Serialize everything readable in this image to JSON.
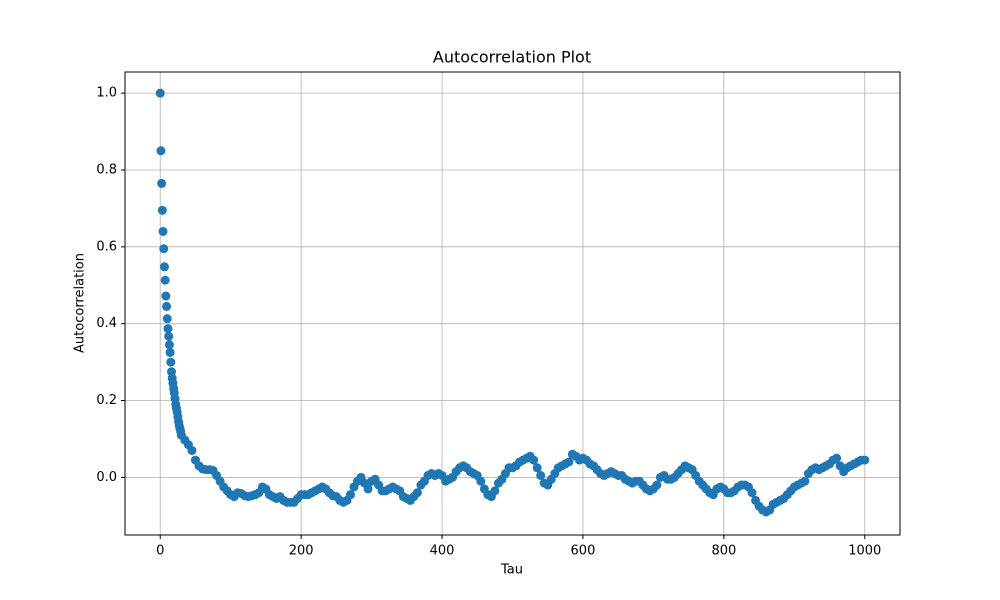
{
  "chart_data": {
    "type": "scatter",
    "title": "Autocorrelation Plot",
    "x_label": "Tau",
    "y_label": "Autocorrelation",
    "color": "#1f77b4",
    "grid": true,
    "xlim": [
      -50,
      1050
    ],
    "ylim": [
      -0.15,
      1.055
    ],
    "xticks": [
      0,
      200,
      400,
      600,
      800,
      1000
    ],
    "yticks": [
      {
        "value": 0.0,
        "label": "0.0"
      },
      0.2,
      0.4,
      0.6,
      0.8,
      {
        "value": 1.0,
        "label": "1.0"
      }
    ],
    "x": [
      0,
      1,
      2,
      3,
      4,
      5,
      6,
      7,
      8,
      9,
      10,
      11,
      12,
      13,
      14,
      15,
      16,
      17,
      18,
      19,
      20,
      21,
      22,
      23,
      24,
      25,
      26,
      27,
      28,
      29,
      30,
      35,
      40,
      45,
      50,
      55,
      60,
      65,
      70,
      75,
      80,
      85,
      90,
      95,
      100,
      105,
      110,
      115,
      120,
      125,
      130,
      135,
      140,
      145,
      150,
      155,
      160,
      165,
      170,
      175,
      180,
      185,
      190,
      195,
      200,
      205,
      210,
      215,
      220,
      225,
      230,
      235,
      240,
      245,
      250,
      255,
      260,
      265,
      270,
      275,
      280,
      285,
      290,
      295,
      300,
      305,
      310,
      315,
      320,
      325,
      330,
      335,
      340,
      345,
      350,
      355,
      360,
      365,
      370,
      375,
      380,
      385,
      390,
      395,
      400,
      405,
      410,
      415,
      420,
      425,
      430,
      435,
      440,
      445,
      450,
      455,
      460,
      465,
      470,
      475,
      480,
      485,
      490,
      495,
      500,
      505,
      510,
      515,
      520,
      525,
      530,
      535,
      540,
      545,
      550,
      555,
      560,
      565,
      570,
      575,
      580,
      585,
      590,
      595,
      600,
      605,
      610,
      615,
      620,
      625,
      630,
      635,
      640,
      645,
      650,
      655,
      660,
      665,
      670,
      675,
      680,
      685,
      690,
      695,
      700,
      705,
      710,
      715,
      720,
      725,
      730,
      735,
      740,
      745,
      750,
      755,
      760,
      765,
      770,
      775,
      780,
      785,
      790,
      795,
      800,
      805,
      810,
      815,
      820,
      825,
      830,
      835,
      840,
      845,
      850,
      855,
      860,
      865,
      870,
      875,
      880,
      885,
      890,
      895,
      900,
      905,
      910,
      915,
      920,
      925,
      930,
      935,
      940,
      945,
      950,
      955,
      960,
      965,
      970,
      975,
      980,
      985,
      990,
      995,
      1000
    ],
    "values": [
      1.0,
      0.85,
      0.765,
      0.695,
      0.64,
      0.595,
      0.548,
      0.513,
      0.472,
      0.445,
      0.413,
      0.387,
      0.367,
      0.345,
      0.325,
      0.3,
      0.275,
      0.258,
      0.245,
      0.232,
      0.22,
      0.205,
      0.19,
      0.18,
      0.17,
      0.158,
      0.145,
      0.135,
      0.127,
      0.12,
      0.11,
      0.097,
      0.085,
      0.07,
      0.045,
      0.03,
      0.022,
      0.02,
      0.02,
      0.018,
      0.005,
      -0.01,
      -0.025,
      -0.035,
      -0.045,
      -0.05,
      -0.04,
      -0.042,
      -0.048,
      -0.05,
      -0.048,
      -0.045,
      -0.04,
      -0.025,
      -0.03,
      -0.045,
      -0.05,
      -0.055,
      -0.05,
      -0.06,
      -0.065,
      -0.065,
      -0.065,
      -0.055,
      -0.045,
      -0.045,
      -0.045,
      -0.04,
      -0.035,
      -0.03,
      -0.025,
      -0.03,
      -0.04,
      -0.048,
      -0.05,
      -0.06,
      -0.065,
      -0.06,
      -0.045,
      -0.025,
      -0.01,
      0.0,
      -0.015,
      -0.03,
      -0.01,
      -0.005,
      -0.02,
      -0.035,
      -0.035,
      -0.03,
      -0.025,
      -0.03,
      -0.035,
      -0.05,
      -0.055,
      -0.06,
      -0.05,
      -0.04,
      -0.02,
      -0.01,
      0.005,
      0.01,
      0.005,
      0.01,
      0.005,
      -0.01,
      -0.005,
      0.0,
      0.015,
      0.025,
      0.03,
      0.025,
      0.015,
      0.01,
      0.005,
      -0.01,
      -0.03,
      -0.045,
      -0.05,
      -0.035,
      -0.015,
      -0.005,
      0.01,
      0.025,
      0.025,
      0.03,
      0.04,
      0.045,
      0.05,
      0.055,
      0.045,
      0.025,
      0.005,
      -0.015,
      -0.02,
      -0.005,
      0.01,
      0.025,
      0.03,
      0.035,
      0.04,
      0.06,
      0.055,
      0.045,
      0.05,
      0.045,
      0.035,
      0.03,
      0.02,
      0.01,
      0.005,
      0.01,
      0.015,
      0.01,
      0.005,
      0.005,
      -0.005,
      -0.01,
      -0.015,
      -0.01,
      -0.01,
      -0.02,
      -0.03,
      -0.035,
      -0.03,
      -0.02,
      0.0,
      0.005,
      -0.005,
      -0.005,
      0.0,
      0.01,
      0.02,
      0.03,
      0.025,
      0.02,
      0.005,
      -0.01,
      -0.02,
      -0.03,
      -0.04,
      -0.045,
      -0.03,
      -0.025,
      -0.03,
      -0.04,
      -0.04,
      -0.035,
      -0.025,
      -0.02,
      -0.02,
      -0.025,
      -0.04,
      -0.06,
      -0.075,
      -0.085,
      -0.09,
      -0.085,
      -0.07,
      -0.065,
      -0.06,
      -0.055,
      -0.045,
      -0.035,
      -0.025,
      -0.02,
      -0.015,
      -0.01,
      0.01,
      0.02,
      0.025,
      0.02,
      0.025,
      0.03,
      0.035,
      0.045,
      0.05,
      0.03,
      0.015,
      0.025,
      0.03,
      0.035,
      0.04,
      0.045,
      0.045
    ]
  }
}
